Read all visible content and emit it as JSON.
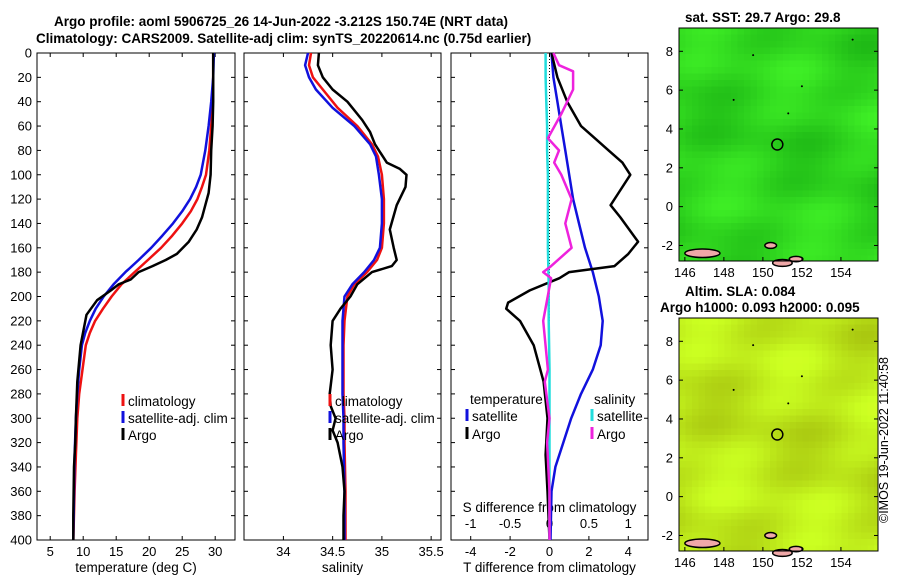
{
  "titles": {
    "line1": "Argo profile: aoml 5906725_26 14-Jun-2022 -3.212S 150.74E (NRT data)",
    "line2": "Climatology: CARS2009. Satellite-adj clim: synTS_20220614.nc (0.75d earlier)"
  },
  "map_titles": {
    "sst": "sat. SST: 29.7 Argo: 29.8",
    "sla1": "Altim. SLA: 0.084",
    "sla2": "Argo h1000: 0.093 h2000: 0.095"
  },
  "stamp": "©IMOS 19-Jun-2022 11:40:58",
  "colors": {
    "climatology": "#ee1111",
    "satellite": "#1111dd",
    "argo": "#000000",
    "salinity_sat": "#22dddd",
    "salinity_argo": "#ee22dd",
    "sst_map": "#2fd51e",
    "sla_map": "#bde81a"
  },
  "chart_data": [
    {
      "type": "line",
      "id": "temperature",
      "xlabel": "temperature (deg C)",
      "ylabel": "depth",
      "xlim": [
        3,
        33
      ],
      "ylim": [
        0,
        400
      ],
      "xticks": [
        5,
        10,
        15,
        20,
        25,
        30
      ],
      "yticks": [
        0,
        20,
        40,
        60,
        80,
        100,
        120,
        140,
        160,
        180,
        200,
        220,
        240,
        260,
        280,
        300,
        320,
        340,
        360,
        380,
        400
      ],
      "legend": [
        "climatology",
        "satellite-adj. clim",
        "Argo"
      ],
      "series": [
        {
          "name": "climatology",
          "color": "#ee1111",
          "x": [
            29.7,
            29.7,
            29.6,
            29.4,
            29.1,
            28.6,
            28,
            27.3,
            26.3,
            25,
            23.5,
            21.8,
            19.8,
            17.8,
            15.8,
            14.3,
            13,
            11.8,
            11,
            10.4,
            9.9,
            9.4,
            9.1,
            8.9,
            8.7,
            8.5
          ],
          "y": [
            0,
            20,
            40,
            60,
            80,
            100,
            110,
            120,
            130,
            140,
            150,
            160,
            170,
            180,
            190,
            200,
            210,
            220,
            230,
            240,
            260,
            280,
            300,
            330,
            360,
            400
          ]
        },
        {
          "name": "satellite-adj. clim",
          "color": "#1111dd",
          "x": [
            29.8,
            29.7,
            29.4,
            29,
            28.5,
            27.8,
            27.1,
            26.2,
            25,
            23.6,
            22,
            20.3,
            18.4,
            16.4,
            14.6,
            13.1,
            11.9,
            11,
            10.3,
            9.8,
            9.4,
            9.1,
            8.9,
            8.7,
            8.5
          ],
          "y": [
            0,
            20,
            40,
            60,
            80,
            100,
            110,
            120,
            130,
            140,
            150,
            160,
            170,
            180,
            190,
            200,
            210,
            220,
            230,
            240,
            260,
            280,
            300,
            330,
            400
          ]
        },
        {
          "name": "Argo",
          "color": "#000000",
          "x": [
            29.7,
            29.7,
            29.7,
            29.6,
            29.4,
            29.3,
            29,
            28.5,
            28,
            27.2,
            26,
            24.2,
            22.5,
            20.5,
            18.4,
            17.2,
            15.4,
            14.2,
            12.1,
            10.5,
            9.6,
            9.1,
            8.9,
            8.8,
            8.6,
            8.5,
            8.5
          ],
          "y": [
            0,
            20,
            40,
            60,
            80,
            100,
            115,
            125,
            135,
            145,
            155,
            165,
            170,
            175,
            180,
            186,
            190,
            195,
            203,
            215,
            240,
            270,
            300,
            320,
            340,
            380,
            400
          ]
        }
      ]
    },
    {
      "type": "line",
      "id": "salinity",
      "xlabel": "salinity",
      "ylabel": "depth",
      "xlim": [
        33.6,
        35.6
      ],
      "ylim": [
        0,
        400
      ],
      "xticks": [
        34,
        34.5,
        35,
        35.5
      ],
      "yticks": [
        0,
        20,
        40,
        60,
        80,
        100,
        120,
        140,
        160,
        180,
        200,
        220,
        240,
        260,
        280,
        300,
        320,
        340,
        360,
        380,
        400
      ],
      "legend": [
        "climatology",
        "satellite-adj. clim",
        "Argo"
      ],
      "series": [
        {
          "name": "climatology",
          "color": "#ee1111",
          "x": [
            34.28,
            34.26,
            34.3,
            34.4,
            34.55,
            34.75,
            34.9,
            34.96,
            35.0,
            35.02,
            35.02,
            35.0,
            34.95,
            34.85,
            34.72,
            34.65,
            34.62,
            34.61,
            34.61,
            34.61,
            34.62,
            34.62,
            34.63,
            34.63
          ],
          "y": [
            0,
            10,
            20,
            30,
            45,
            60,
            75,
            85,
            100,
            120,
            140,
            160,
            170,
            180,
            190,
            200,
            220,
            240,
            260,
            280,
            300,
            320,
            360,
            400
          ]
        },
        {
          "name": "satellite-adj. clim",
          "color": "#1111dd",
          "x": [
            34.25,
            34.22,
            34.26,
            34.33,
            34.5,
            34.72,
            34.88,
            34.94,
            34.97,
            35.0,
            35.0,
            34.98,
            34.92,
            34.82,
            34.7,
            34.62,
            34.6,
            34.6,
            34.6,
            34.6,
            34.61,
            34.61,
            34.62,
            34.62
          ],
          "y": [
            0,
            10,
            20,
            30,
            45,
            60,
            75,
            85,
            100,
            120,
            140,
            160,
            170,
            180,
            190,
            200,
            220,
            240,
            260,
            280,
            300,
            320,
            360,
            400
          ]
        },
        {
          "name": "Argo",
          "color": "#000000",
          "x": [
            34.36,
            34.35,
            34.4,
            34.5,
            34.65,
            34.8,
            34.88,
            34.93,
            35.05,
            35.18,
            35.25,
            35.24,
            35.15,
            35.08,
            35.12,
            35.15,
            35.1,
            34.9,
            34.75,
            34.68,
            34.58,
            34.5,
            34.48,
            34.5,
            34.47,
            34.48,
            34.53,
            34.5,
            34.55,
            34.6,
            34.62,
            34.61,
            34.61
          ],
          "y": [
            0,
            10,
            20,
            30,
            40,
            55,
            65,
            75,
            90,
            95,
            100,
            110,
            125,
            145,
            160,
            170,
            175,
            180,
            190,
            200,
            210,
            220,
            240,
            260,
            280,
            290,
            300,
            310,
            320,
            340,
            360,
            380,
            400
          ]
        }
      ]
    },
    {
      "type": "line",
      "id": "differences",
      "xlabel": "T difference from climatology",
      "x2label": "S difference from climatology",
      "ylabel": "depth",
      "xlim": [
        -5,
        5
      ],
      "x2lim": [
        -1.25,
        1.25
      ],
      "ylim": [
        0,
        400
      ],
      "xticks": [
        -4,
        -2,
        0,
        2,
        4
      ],
      "x2ticks": [
        -1,
        -0.5,
        0,
        0.5,
        1
      ],
      "yticks": [
        0,
        20,
        40,
        60,
        80,
        100,
        120,
        140,
        160,
        180,
        200,
        220,
        240,
        260,
        280,
        300,
        320,
        340,
        360,
        380,
        400
      ],
      "legend_temperature": [
        "temperature",
        "satellite",
        "Argo"
      ],
      "legend_salinity": [
        "salinity",
        "satellite",
        "Argo"
      ],
      "series": [
        {
          "name": "temperature satellite",
          "axis": "T",
          "color": "#1111dd",
          "x": [
            0.1,
            0.2,
            0.4,
            0.6,
            0.8,
            1.0,
            1.2,
            1.5,
            1.8,
            2.2,
            2.5,
            2.7,
            2.6,
            2.2,
            1.6,
            1.1,
            0.7,
            0.3,
            0.1,
            0.05
          ],
          "y": [
            0,
            20,
            40,
            60,
            80,
            100,
            120,
            140,
            160,
            180,
            200,
            220,
            240,
            260,
            280,
            300,
            320,
            340,
            360,
            400
          ]
        },
        {
          "name": "temperature Argo",
          "axis": "T",
          "color": "#000000",
          "x": [
            0.1,
            0.4,
            0.9,
            1.6,
            2.3,
            3.0,
            3.7,
            4.1,
            3.5,
            3.1,
            3.6,
            4.5,
            4.0,
            3.3,
            1.0,
            0.5,
            -1.0,
            -2.1,
            -2.2,
            -1.5,
            -0.8,
            -0.3,
            -0.1,
            -0.2,
            -0.1,
            0
          ],
          "y": [
            0,
            20,
            40,
            60,
            70,
            80,
            90,
            100,
            115,
            125,
            135,
            155,
            165,
            175,
            180,
            185,
            195,
            205,
            210,
            220,
            240,
            270,
            300,
            330,
            360,
            400
          ]
        },
        {
          "name": "salinity satellite",
          "axis": "S",
          "color": "#22dddd",
          "x": [
            -0.05,
            -0.05,
            -0.04,
            -0.03,
            -0.03,
            -0.02,
            -0.02,
            -0.02,
            -0.01,
            -0.01,
            0,
            0,
            0,
            0
          ],
          "y": [
            0,
            20,
            40,
            60,
            80,
            100,
            130,
            160,
            190,
            220,
            260,
            300,
            340,
            400
          ]
        },
        {
          "name": "salinity Argo",
          "axis": "S",
          "color": "#ee22dd",
          "x": [
            0.05,
            0.12,
            0.3,
            0.3,
            0.15,
            -0.02,
            0.12,
            0.06,
            0.15,
            0.28,
            0.2,
            0.28,
            0.02,
            -0.08,
            0.02,
            -0.08,
            -0.02,
            -0.06,
            -0.02,
            0,
            -0.03,
            0,
            0
          ],
          "y": [
            0,
            10,
            15,
            30,
            50,
            70,
            80,
            90,
            100,
            120,
            140,
            160,
            175,
            180,
            185,
            220,
            260,
            270,
            290,
            300,
            320,
            360,
            400
          ]
        }
      ]
    },
    {
      "type": "heatmap",
      "id": "sst_map",
      "title": "sat. SST: 29.7 Argo: 29.8",
      "xlim": [
        145.7,
        155.9
      ],
      "ylim": [
        -2.8,
        9.2
      ],
      "xticks": [
        146,
        148,
        150,
        152,
        154
      ],
      "yticks": [
        -2,
        0,
        2,
        4,
        6,
        8
      ],
      "marker": {
        "x": 150.74,
        "y": 3.2
      }
    },
    {
      "type": "heatmap",
      "id": "sla_map",
      "title": "Altim. SLA: 0.084",
      "xlim": [
        145.7,
        155.9
      ],
      "ylim": [
        -2.8,
        9.2
      ],
      "xticks": [
        146,
        148,
        150,
        152,
        154
      ],
      "yticks": [
        -2,
        0,
        2,
        4,
        6,
        8
      ],
      "marker": {
        "x": 150.74,
        "y": 3.2
      }
    }
  ]
}
